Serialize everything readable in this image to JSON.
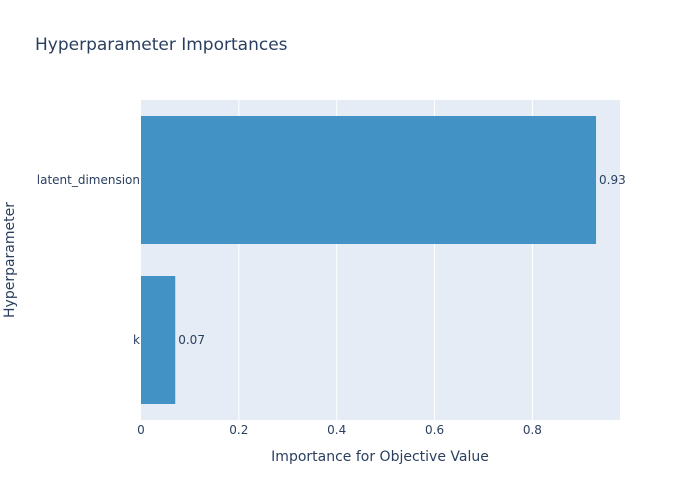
{
  "chart_data": {
    "type": "bar",
    "orientation": "horizontal",
    "title": "Hyperparameter Importances",
    "xlabel": "Importance for Objective Value",
    "ylabel": "Hyperparameter",
    "categories": [
      "latent_dimension",
      "k"
    ],
    "values": [
      0.93,
      0.07
    ],
    "value_labels": [
      "0.93",
      "0.07"
    ],
    "x_ticks": [
      0,
      0.2,
      0.4,
      0.6,
      0.8
    ],
    "x_tick_labels": [
      "0",
      "0.2",
      "0.4",
      "0.6",
      "0.8"
    ],
    "xlim": [
      0,
      0.979
    ],
    "grid": true,
    "colors": {
      "bar": "#4292c6",
      "plot_bg": "#e5ecf6",
      "grid": "#ffffff",
      "text": "#2a3f5f"
    }
  }
}
